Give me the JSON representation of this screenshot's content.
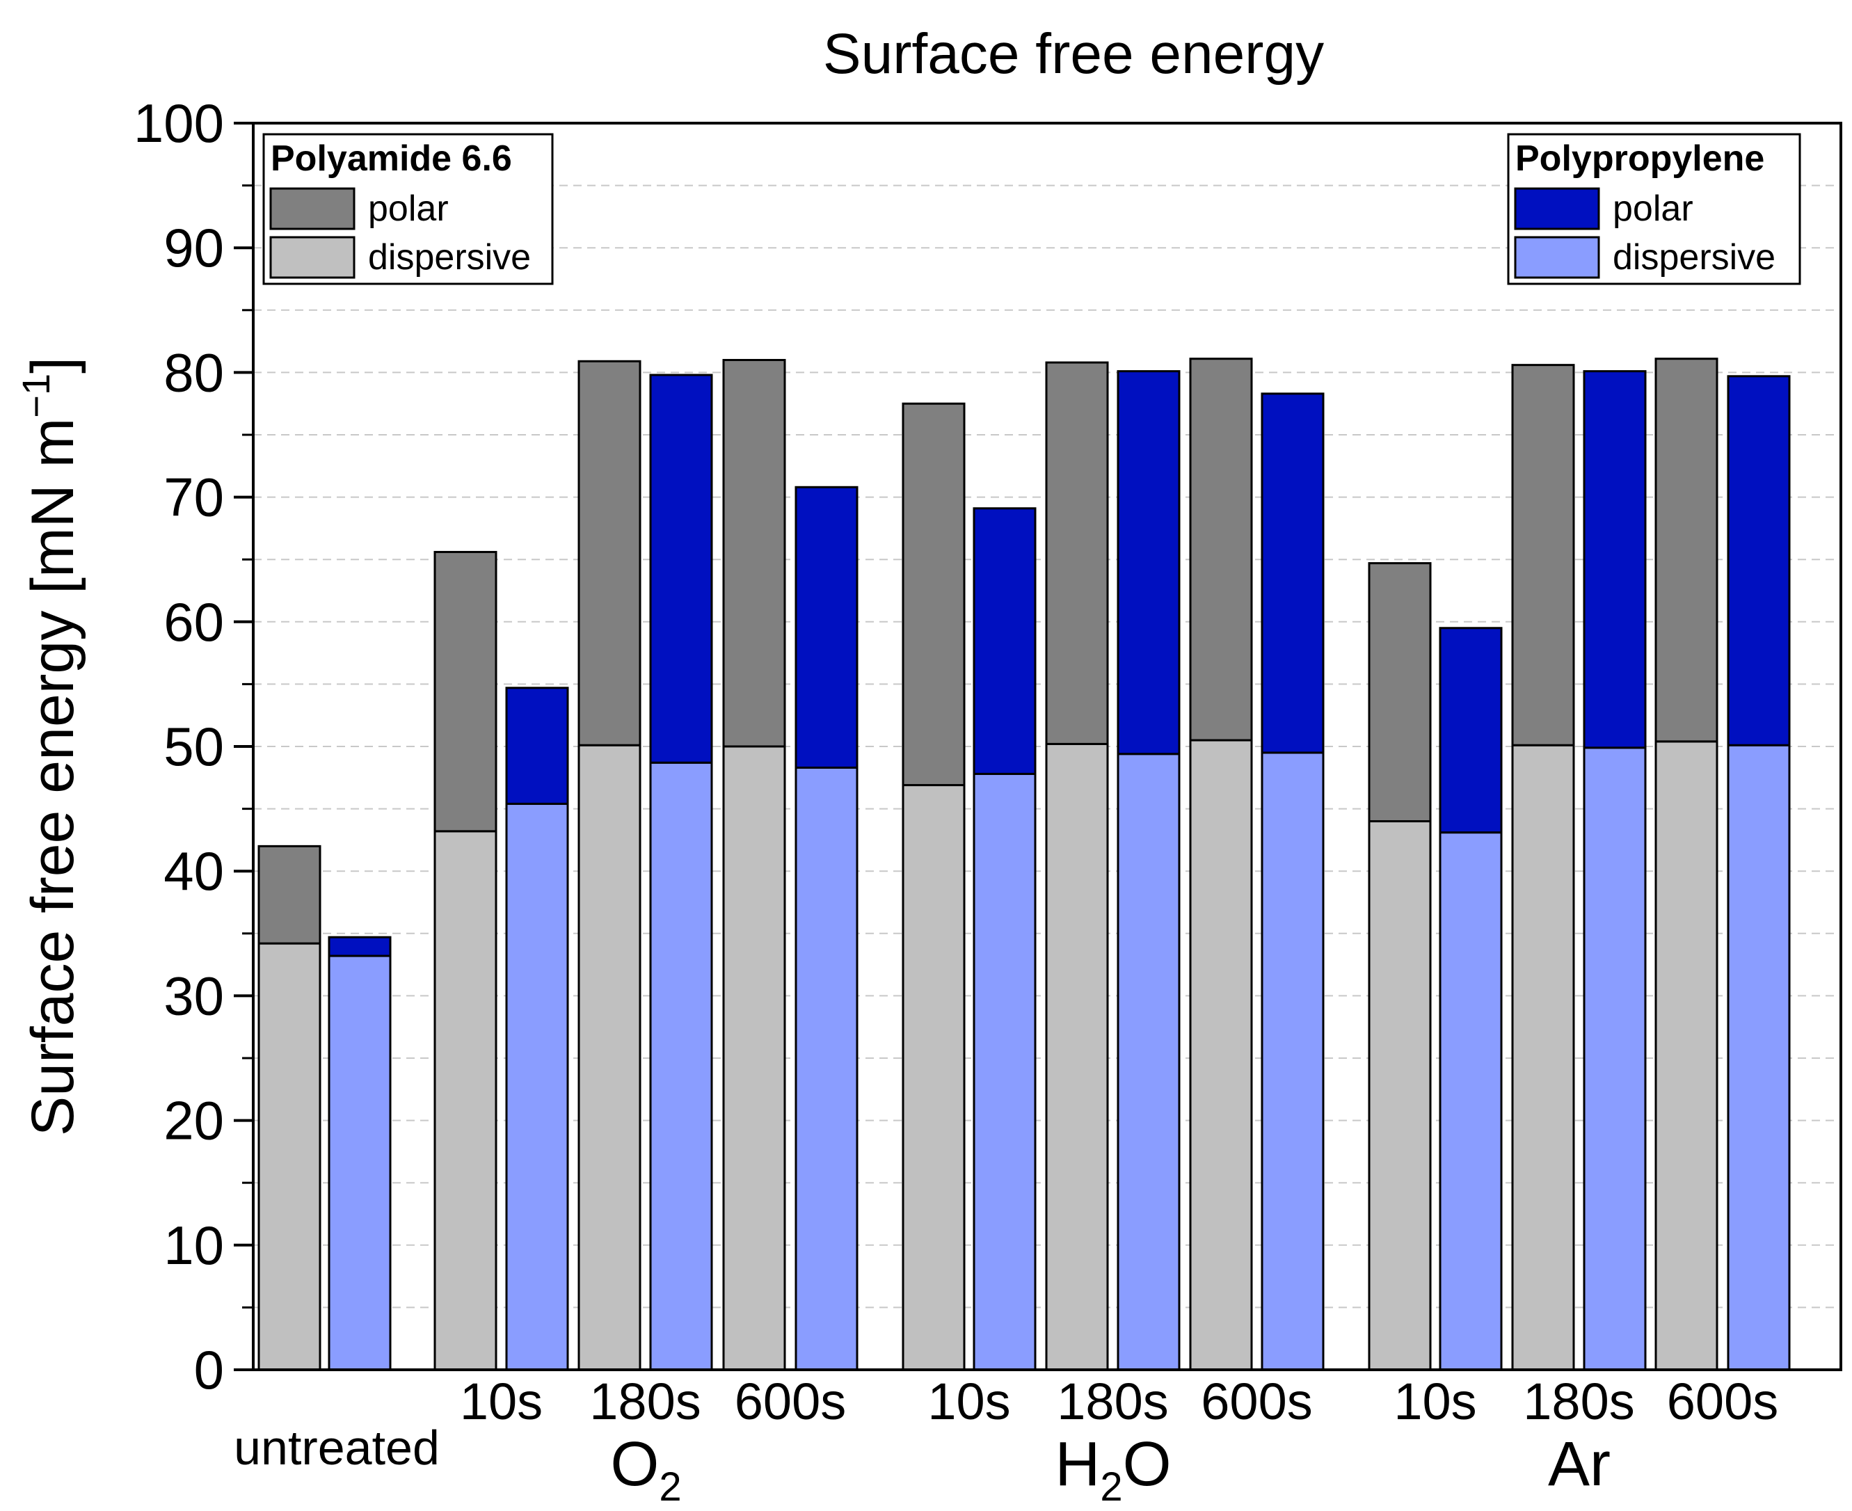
{
  "chart_data": {
    "type": "bar",
    "title": "Surface free energy",
    "ylabel": "Surface free energy [mN m",
    "ylabel_sup": "−1",
    "ylabel_close": "]",
    "ylim": [
      0,
      100
    ],
    "yticks": [
      0,
      10,
      20,
      30,
      40,
      50,
      60,
      70,
      80,
      90,
      100
    ],
    "grid": "horizontal dashed",
    "stacked": true,
    "groups": [
      {
        "group_label": "untreated",
        "group_sub": "",
        "sub_labels": [
          ""
        ]
      },
      {
        "group_label": "O",
        "group_sub": "2",
        "group_suffix": "",
        "sub_labels": [
          "10s",
          "180s",
          "600s"
        ]
      },
      {
        "group_label": "H",
        "group_sub": "2",
        "group_suffix": "O",
        "sub_labels": [
          "10s",
          "180s",
          "600s"
        ]
      },
      {
        "group_label": "Ar",
        "group_sub": "",
        "group_suffix": "",
        "sub_labels": [
          "10s",
          "180s",
          "600s"
        ]
      }
    ],
    "materials": [
      {
        "name": "Polyamide 6.6",
        "polar_color": "#808080",
        "dispersive_color": "#c0c0c0",
        "dispersive": [
          34.2,
          43.2,
          50.1,
          50.0,
          46.9,
          50.2,
          50.5,
          44.0,
          50.1,
          50.4
        ],
        "total": [
          42.0,
          65.6,
          80.9,
          81.0,
          77.5,
          80.8,
          81.1,
          64.7,
          80.6,
          81.1
        ]
      },
      {
        "name": "Polypropylene",
        "polar_color": "#0010c0",
        "dispersive_color": "#8a9dff",
        "dispersive": [
          33.2,
          45.4,
          48.7,
          48.3,
          47.8,
          49.4,
          49.5,
          43.1,
          49.9,
          50.1
        ],
        "total": [
          34.7,
          54.7,
          79.8,
          70.8,
          69.1,
          80.1,
          78.3,
          59.5,
          80.1,
          79.7
        ]
      }
    ],
    "legends": [
      {
        "title": "Polyamide 6.6",
        "items": [
          "polar",
          "dispersive"
        ],
        "placement": "top-left"
      },
      {
        "title": "Polypropylene",
        "items": [
          "polar",
          "dispersive"
        ],
        "placement": "top-right"
      }
    ]
  }
}
